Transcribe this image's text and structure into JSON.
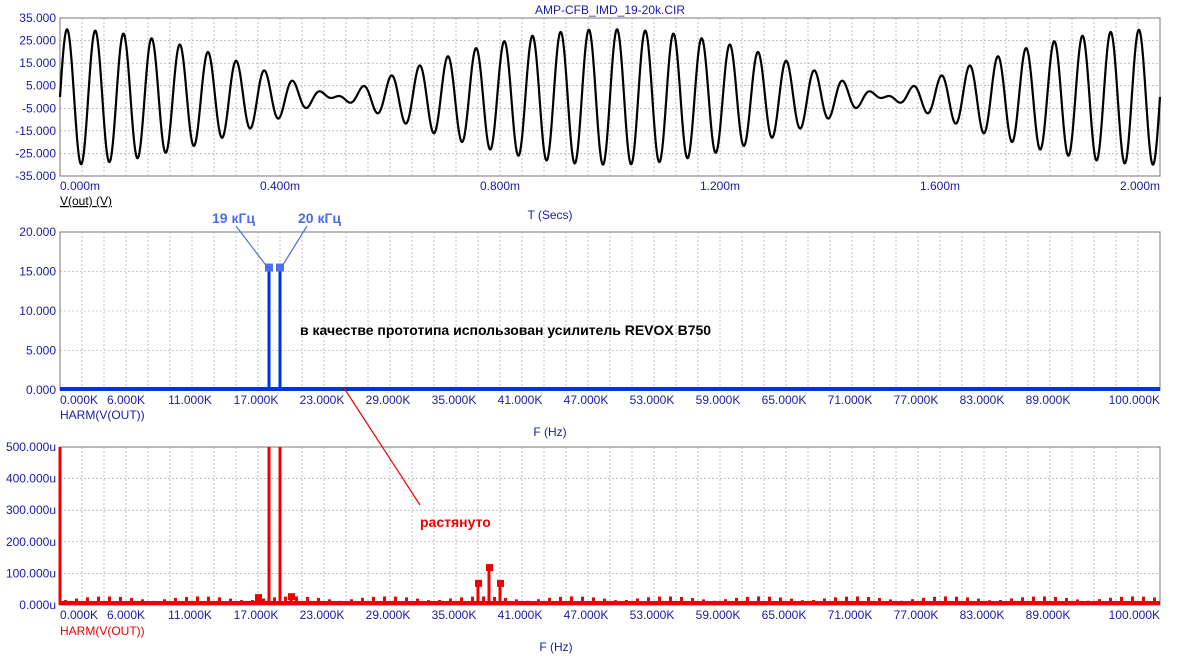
{
  "title": "AMP-CFB_IMD_19-20k.CIR",
  "colors": {
    "axis_text": "#1a1aa6",
    "grid": "#9a9a9a",
    "panel1": "#000000",
    "panel2": "#0033dd",
    "panel3": "#ee0000",
    "highlight": "#4c6ee8"
  },
  "panels": [
    {
      "id": "time",
      "y_ticks": [
        "35.000",
        "25.000",
        "15.000",
        "5.000",
        "-5.000",
        "-15.000",
        "-25.000",
        "-35.000"
      ],
      "x_ticks": [
        "0.000m",
        "0.400m",
        "0.800m",
        "1.200m",
        "1.600m",
        "2.000m"
      ],
      "trace_label": "V(out) (V)",
      "x_label": "T (Secs)"
    },
    {
      "id": "spectrum",
      "y_ticks": [
        "20.000",
        "15.000",
        "10.000",
        "5.000",
        "0.000"
      ],
      "x_ticks": [
        "0.000K",
        "6.000K",
        "11.000K",
        "17.000K",
        "23.000K",
        "29.000K",
        "35.000K",
        "41.000K",
        "47.000K",
        "53.000K",
        "59.000K",
        "65.000K",
        "71.000K",
        "77.000K",
        "83.000K",
        "89.000K",
        "100.000K"
      ],
      "trace_label": "HARM(V(OUT))",
      "x_label": "F (Hz)"
    },
    {
      "id": "spectrum-zoom",
      "y_ticks": [
        "500.000u",
        "400.000u",
        "300.000u",
        "200.000u",
        "100.000u",
        "0.000u"
      ],
      "x_ticks": [
        "0.000K",
        "6.000K",
        "11.000K",
        "17.000K",
        "23.000K",
        "29.000K",
        "35.000K",
        "41.000K",
        "47.000K",
        "53.000K",
        "59.000K",
        "65.000K",
        "71.000K",
        "77.000K",
        "83.000K",
        "89.000K",
        "100.000K"
      ],
      "trace_label": "HARM(V(OUT))",
      "x_label": "F (Hz)"
    }
  ],
  "annotations": {
    "f1": "19 кГц",
    "f2": "20 кГц",
    "prototype": "в качестве прототипа использован усилитель REVOX B750",
    "stretched": "растянуто"
  },
  "chart_data": [
    {
      "type": "line",
      "title": "AMP-CFB_IMD_19-20k.CIR",
      "xlabel": "T (Secs)",
      "ylabel": "V(out) (V)",
      "xlim": [
        0,
        0.002
      ],
      "ylim": [
        -35,
        35
      ],
      "series": [
        {
          "name": "V(out) (V)",
          "signal": "two-tone",
          "tones_hz": [
            19000,
            20000
          ],
          "amplitude_each_v": 15,
          "peak_v": 30
        }
      ],
      "grid": true
    },
    {
      "type": "bar",
      "xlabel": "F (Hz)",
      "ylabel": "",
      "xlim": [
        0,
        100000
      ],
      "ylim": [
        0,
        20
      ],
      "series": [
        {
          "name": "HARM(V(OUT))",
          "points": [
            {
              "x": 19000,
              "y": 15.5
            },
            {
              "x": 20000,
              "y": 15.5
            }
          ]
        }
      ],
      "grid": true
    },
    {
      "type": "bar",
      "xlabel": "F (Hz)",
      "ylabel": "",
      "xlim": [
        0,
        100000
      ],
      "ylim": [
        0,
        0.0005
      ],
      "series": [
        {
          "name": "HARM(V(OUT))",
          "points": [
            {
              "x": 0,
              "y": 0.0005
            },
            {
              "x": 18000,
              "y": 2.5e-05
            },
            {
              "x": 19000,
              "y": 0.0005
            },
            {
              "x": 20000,
              "y": 0.0005
            },
            {
              "x": 21000,
              "y": 2.8e-05
            },
            {
              "x": 38000,
              "y": 7e-05
            },
            {
              "x": 39000,
              "y": 0.00012
            },
            {
              "x": 40000,
              "y": 7e-05
            }
          ]
        }
      ],
      "noise_floor": 2e-05,
      "grid": true
    }
  ]
}
